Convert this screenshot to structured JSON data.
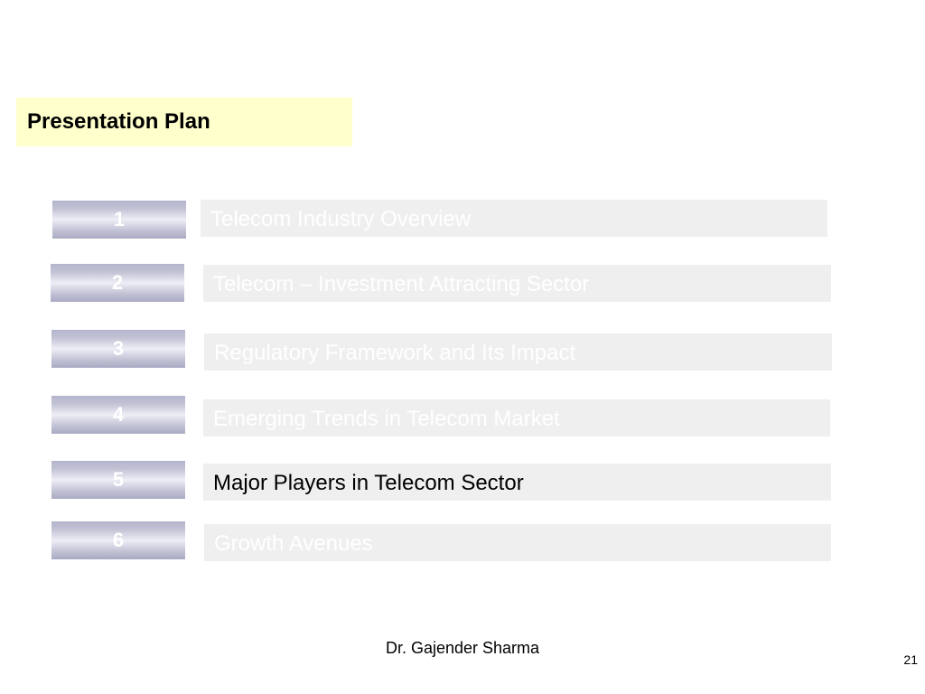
{
  "slide": {
    "title": "Presentation Plan",
    "items": [
      {
        "number": "1",
        "label": "Telecom Industry Overview",
        "active": false
      },
      {
        "number": "2",
        "label": "Telecom – Investment Attracting Sector",
        "active": false
      },
      {
        "number": "3",
        "label": "Regulatory Framework and Its Impact",
        "active": false
      },
      {
        "number": "4",
        "label": "Emerging Trends in Telecom Market",
        "active": false
      },
      {
        "number": "5",
        "label": "Major Players in Telecom Sector",
        "active": true
      },
      {
        "number": "6",
        "label": "Growth Avenues",
        "active": false
      }
    ]
  },
  "footer": {
    "author": "Dr. Gajender Sharma",
    "page_number": "21"
  },
  "colors": {
    "title_background": "#ffffcc",
    "item_background": "#efefef",
    "inactive_text": "#ffffff",
    "active_text": "#000000",
    "number_box_gradient": [
      "#b4b4cc",
      "#eeeef6"
    ]
  }
}
